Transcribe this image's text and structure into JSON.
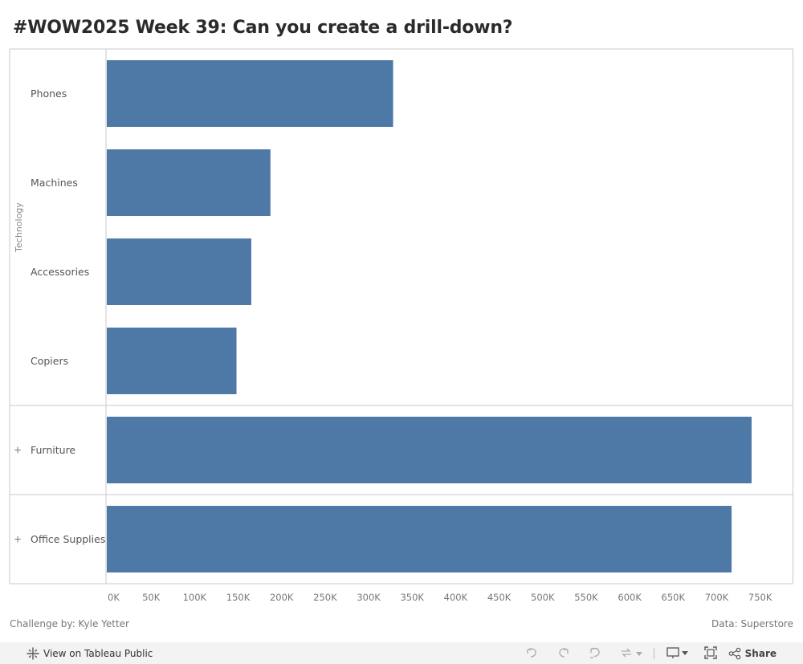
{
  "page": {
    "title": "#WOW2025 Week 39: Can you create a drill-down?",
    "footer_left": "Challenge by: Kyle Yetter",
    "footer_right": "Data: Superstore"
  },
  "toolbar": {
    "view_label": "View on Tableau Public",
    "share_label": "Share",
    "icons": [
      "tableau-logo-icon",
      "undo-icon",
      "redo-icon",
      "revert-icon",
      "refresh-icon",
      "dropdown-icon",
      "presentation-icon",
      "fullscreen-icon",
      "share-icon"
    ]
  },
  "chart_data": {
    "type": "bar",
    "orientation": "horizontal",
    "title": "#WOW2025 Week 39: Can you create a drill-down?",
    "groups": [
      {
        "name": "Technology",
        "expanded": true,
        "expand_marker": "",
        "categories": [
          "Phones",
          "Machines",
          "Accessories",
          "Copiers"
        ],
        "values": [
          330000,
          189000,
          167000,
          150000
        ]
      },
      {
        "name": "Furniture",
        "expanded": false,
        "expand_marker": "+",
        "categories": [
          "Furniture"
        ],
        "values": [
          742000
        ]
      },
      {
        "name": "Office Supplies",
        "expanded": false,
        "expand_marker": "+",
        "categories": [
          "Office Supplies"
        ],
        "values": [
          719000
        ]
      }
    ],
    "xlim": [
      0,
      790000
    ],
    "xticks": [
      0,
      50000,
      100000,
      150000,
      200000,
      250000,
      300000,
      350000,
      400000,
      450000,
      500000,
      550000,
      600000,
      650000,
      700000,
      750000
    ],
    "xtick_labels": [
      "0K",
      "50K",
      "100K",
      "150K",
      "200K",
      "250K",
      "300K",
      "350K",
      "400K",
      "450K",
      "500K",
      "550K",
      "600K",
      "650K",
      "700K",
      "750K"
    ],
    "xlabel": "",
    "ylabel": "",
    "grid": false,
    "colors": {
      "bar": "#4e79a7",
      "border": "#c8c8c8",
      "label": "#555555",
      "tick": "#777777",
      "group_label": "#888888"
    }
  }
}
